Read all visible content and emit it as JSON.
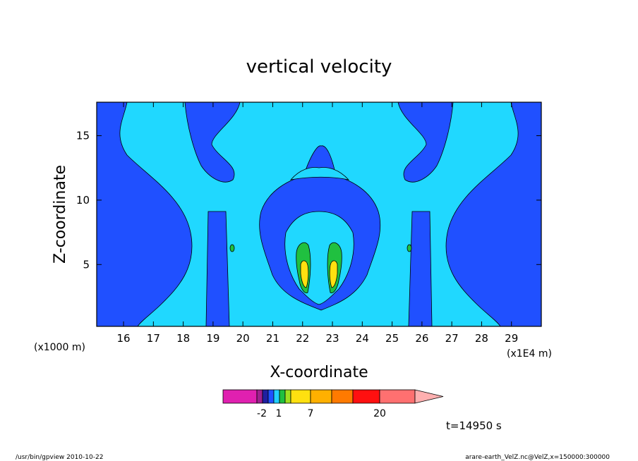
{
  "chart_data": {
    "type": "heatmap",
    "title": "vertical velocity",
    "xlabel": "X-coordinate",
    "ylabel": "Z-coordinate",
    "x_unit_left": "(x1000 m)",
    "x_unit_right": "(x1E4 m)",
    "xlim": [
      15.1,
      30.0
    ],
    "ylim": [
      0.2,
      17.6
    ],
    "x_ticks": [
      16,
      17,
      18,
      19,
      20,
      21,
      22,
      23,
      24,
      25,
      26,
      27,
      28,
      29
    ],
    "y_ticks": [
      5,
      10,
      15
    ],
    "colorbar": {
      "tick_labels": [
        "-2",
        "1",
        "7",
        "20"
      ],
      "colors": [
        "#e020b0",
        "#a02090",
        "#2020a0",
        "#2050ff",
        "#20d0ff",
        "#20c040",
        "#a0e020",
        "#ffe010",
        "#ffb000",
        "#ff7a00",
        "#ff1010",
        "#ff7070",
        "#ffb0b0"
      ]
    },
    "legend_note": "t=14950 s",
    "footer_left": "/usr/bin/gpview   2010-10-22",
    "footer_right": "arare-earth_VelZ.nc@VelZ,x=150000:300000",
    "palette": {
      "background": "#20d8ff",
      "dark_blue": "#2050ff",
      "green": "#20c040",
      "yellow": "#ffe010"
    }
  }
}
